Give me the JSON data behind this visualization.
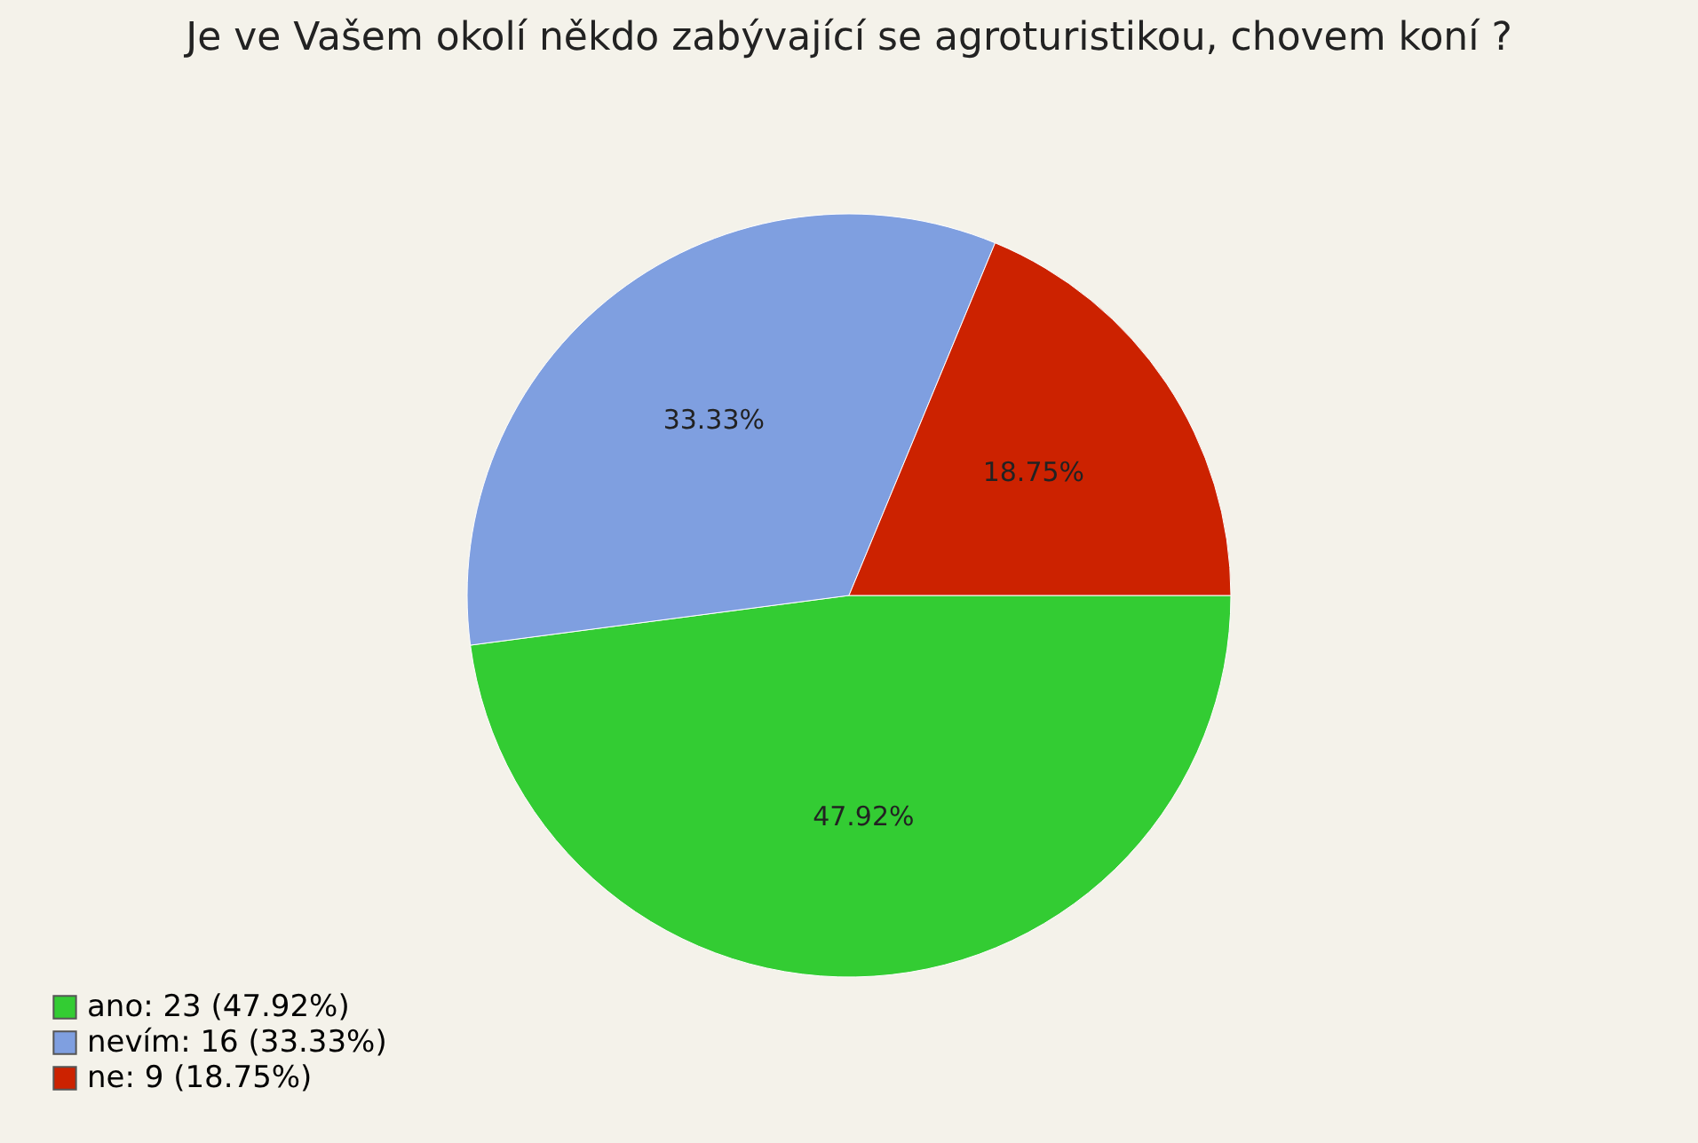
{
  "chart_data": {
    "type": "pie",
    "title": "Je ve Vašem okolí někdo zabývající se agroturistikou, chovem koní ?",
    "categories": [
      "ano: 23 (47.92%)",
      "nevím: 16 (33.33%)",
      "ne: 9 (18.75%)"
    ],
    "values": [
      47.92,
      33.33,
      18.75
    ],
    "colors": [
      "#33cc33",
      "#7f9fe0",
      "#cc2200"
    ],
    "value_labels": [
      "47.92%",
      "33.33%",
      "18.75%"
    ],
    "legend": "bottom left"
  }
}
